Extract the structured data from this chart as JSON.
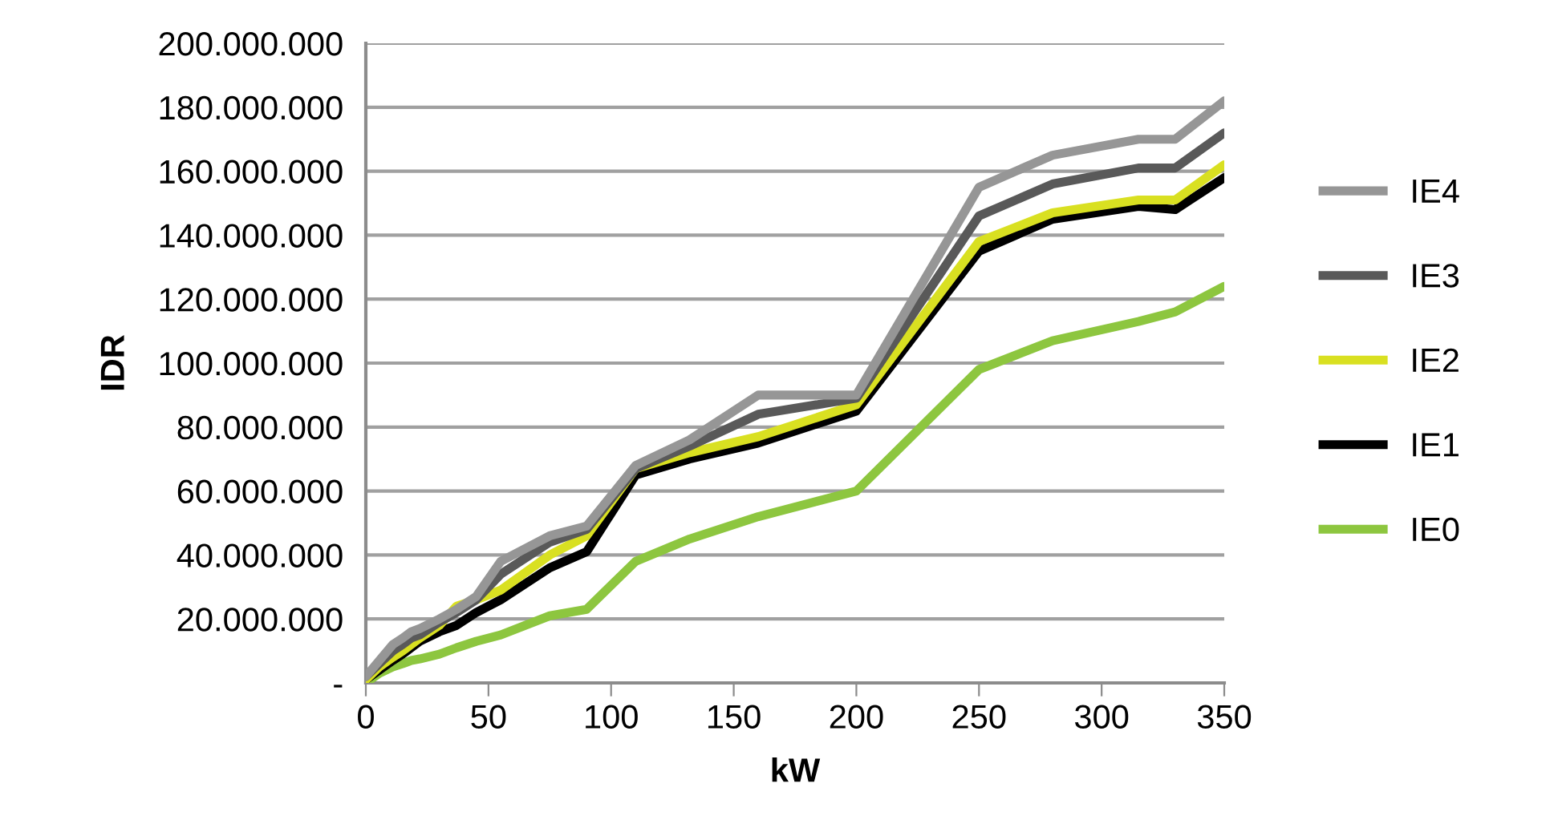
{
  "chart_data": {
    "type": "line",
    "xlabel": "kW",
    "ylabel": "IDR",
    "x": [
      0,
      5.5,
      11,
      15,
      18.5,
      22,
      30,
      37,
      45,
      55,
      75,
      90,
      110,
      132,
      160,
      200,
      250,
      280,
      315,
      330,
      350
    ],
    "series": [
      {
        "name": "IE4",
        "color": "#969696",
        "values": [
          2000000,
          7000000,
          12000000,
          14000000,
          16000000,
          17000000,
          20000000,
          23000000,
          27000000,
          38000000,
          46000000,
          49000000,
          68000000,
          76000000,
          90000000,
          90000000,
          155000000,
          165000000,
          170000000,
          170000000,
          182000000
        ]
      },
      {
        "name": "IE3",
        "color": "#595959",
        "values": [
          2000000,
          6000000,
          10000000,
          12000000,
          14000000,
          15000000,
          19000000,
          22000000,
          26000000,
          34000000,
          44000000,
          48000000,
          67000000,
          74000000,
          84000000,
          89000000,
          146000000,
          156000000,
          161000000,
          161000000,
          172000000
        ]
      },
      {
        "name": "IE2",
        "color": "#d9e021",
        "values": [
          1000000,
          5000000,
          8000000,
          10000000,
          12000000,
          14000000,
          18000000,
          24000000,
          26000000,
          29000000,
          40000000,
          46000000,
          67000000,
          72000000,
          77000000,
          87000000,
          138000000,
          147000000,
          151000000,
          151000000,
          162000000
        ]
      },
      {
        "name": "IE1",
        "color": "#000000",
        "values": [
          1000000,
          4000000,
          7000000,
          9000000,
          11000000,
          13000000,
          16000000,
          18000000,
          22000000,
          26000000,
          36000000,
          41000000,
          65000000,
          70000000,
          75000000,
          85000000,
          135000000,
          145000000,
          149000000,
          148000000,
          158000000
        ]
      },
      {
        "name": "IE0",
        "color": "#8dc63f",
        "values": [
          0,
          3000000,
          5000000,
          6000000,
          7000000,
          7500000,
          9000000,
          11000000,
          13000000,
          15000000,
          21000000,
          23000000,
          38000000,
          45000000,
          52000000,
          60000000,
          98000000,
          107000000,
          113000000,
          116000000,
          124000000
        ]
      }
    ],
    "xlim": [
      0,
      350
    ],
    "xticks": [
      0,
      50,
      100,
      150,
      200,
      250,
      300,
      350
    ],
    "ylim": [
      0,
      200000000
    ],
    "yticks": [
      {
        "value": 0,
        "label": "-"
      },
      {
        "value": 20000000,
        "label": "20.000.000"
      },
      {
        "value": 40000000,
        "label": "40.000.000"
      },
      {
        "value": 60000000,
        "label": "60.000.000"
      },
      {
        "value": 80000000,
        "label": "80.000.000"
      },
      {
        "value": 100000000,
        "label": "100.000.000"
      },
      {
        "value": 120000000,
        "label": "120.000.000"
      },
      {
        "value": 140000000,
        "label": "140.000.000"
      },
      {
        "value": 160000000,
        "label": "160.000.000"
      },
      {
        "value": 180000000,
        "label": "180.000.000"
      },
      {
        "value": 200000000,
        "label": "200.000.000"
      }
    ],
    "grid": "y",
    "legend": "right",
    "marker": "none",
    "line_style": "solid"
  }
}
